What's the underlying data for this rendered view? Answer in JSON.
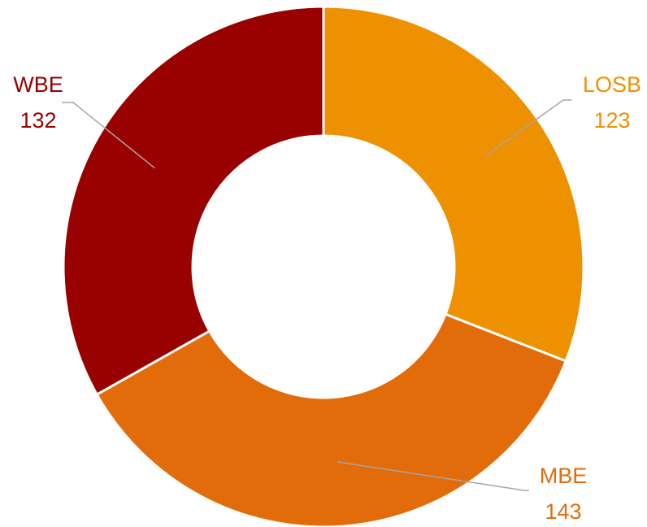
{
  "chart_data": {
    "type": "pie",
    "variant": "donut",
    "title": "",
    "legend": "none",
    "slices": [
      {
        "label": "LOSB",
        "value": 123,
        "value_label": "123",
        "color": "#ED9100"
      },
      {
        "label": "MBE",
        "value": 143,
        "value_label": "143",
        "color": "#E36C0A"
      },
      {
        "label": "WBE",
        "value": 132,
        "value_label": "132",
        "color": "#990000"
      }
    ]
  }
}
